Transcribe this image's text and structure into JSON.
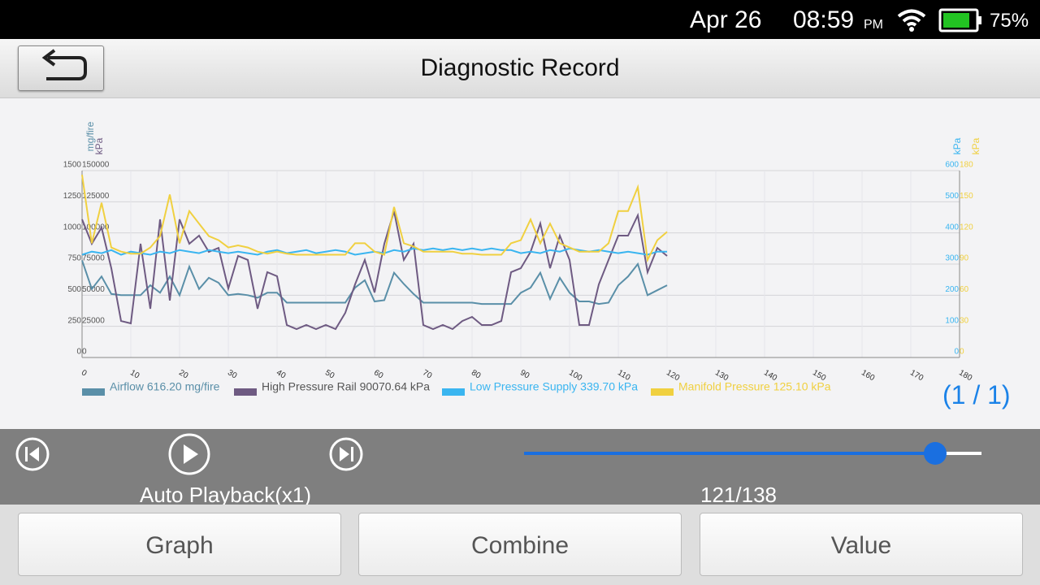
{
  "status_bar": {
    "date": "Apr 26",
    "time": "08:59",
    "ampm": "PM",
    "battery": "75%"
  },
  "header": {
    "title": "Diagnostic Record"
  },
  "chart_data": {
    "type": "line",
    "x": [
      0,
      2,
      4,
      6,
      8,
      10,
      12,
      14,
      16,
      18,
      20,
      22,
      24,
      26,
      28,
      30,
      32,
      34,
      36,
      38,
      40,
      42,
      44,
      46,
      48,
      50,
      52,
      54,
      56,
      58,
      60,
      62,
      64,
      66,
      68,
      70,
      72,
      74,
      76,
      78,
      80,
      82,
      84,
      86,
      88,
      90,
      92,
      94,
      96,
      98,
      100,
      102,
      104,
      106,
      108,
      110,
      112,
      114,
      116,
      118,
      120
    ],
    "xlim": [
      0,
      180
    ],
    "xticks": [
      0,
      10,
      20,
      30,
      40,
      50,
      60,
      70,
      80,
      90,
      100,
      110,
      120,
      130,
      140,
      150,
      160,
      170,
      180
    ],
    "grid": true,
    "yaxes": [
      {
        "label": "mg/fire",
        "side": "left",
        "color": "#5a8fa8",
        "lim": [
          0,
          1500
        ],
        "ticks": [
          0,
          250,
          500,
          750,
          1000,
          1250,
          1500
        ]
      },
      {
        "label": "kPa",
        "side": "left",
        "color": "#6e5a82",
        "lim": [
          0,
          150000
        ],
        "ticks": [
          0,
          25000,
          50000,
          75000,
          100000,
          125000,
          150000
        ]
      },
      {
        "label": "kPa",
        "side": "right",
        "color": "#3ab5f0",
        "lim": [
          0,
          600
        ],
        "ticks": [
          0,
          100,
          200,
          300,
          400,
          500,
          600
        ]
      },
      {
        "label": "kPa",
        "side": "right",
        "color": "#f0d040",
        "lim": [
          0,
          180
        ],
        "ticks": [
          0,
          30,
          60,
          90,
          120,
          150,
          180
        ]
      }
    ],
    "series": [
      {
        "name": "Airflow 616.20 mg/fire",
        "color": "#5a8fa8",
        "axis": 0,
        "values": [
          780,
          550,
          650,
          510,
          500,
          500,
          500,
          580,
          520,
          650,
          500,
          730,
          550,
          640,
          600,
          500,
          510,
          500,
          480,
          520,
          520,
          440,
          440,
          440,
          440,
          440,
          440,
          440,
          560,
          620,
          450,
          460,
          680,
          590,
          510,
          440,
          440,
          440,
          440,
          440,
          440,
          430,
          430,
          430,
          430,
          520,
          560,
          680,
          470,
          640,
          520,
          450,
          450,
          430,
          440,
          580,
          650,
          750,
          500,
          540,
          580
        ]
      },
      {
        "name": "High Pressure Rail 90070.64 kPa",
        "color": "#6e5a82",
        "axis": 1,
        "values": [
          110900,
          91300,
          104300,
          71700,
          29300,
          27400,
          91300,
          39100,
          110900,
          45700,
          110900,
          91300,
          97800,
          84800,
          88000,
          55400,
          81500,
          78300,
          39100,
          68500,
          65200,
          26100,
          22800,
          26100,
          22800,
          26100,
          22800,
          35900,
          58700,
          78300,
          52200,
          91300,
          117400,
          78300,
          91300,
          26100,
          22800,
          26100,
          22800,
          29300,
          32600,
          26100,
          26100,
          29300,
          68500,
          71700,
          84800,
          107600,
          71700,
          97800,
          78300,
          26100,
          26100,
          58700,
          78300,
          97800,
          97800,
          114100,
          68500,
          88000,
          81500
        ]
      },
      {
        "name": "Low Pressure Supply 339.70 kPa",
        "color": "#3ab5f0",
        "axis": 2,
        "values": [
          330,
          340,
          335,
          345,
          330,
          340,
          335,
          330,
          340,
          335,
          345,
          340,
          335,
          345,
          340,
          335,
          340,
          335,
          330,
          340,
          345,
          335,
          340,
          345,
          335,
          340,
          345,
          340,
          330,
          335,
          340,
          335,
          345,
          340,
          350,
          345,
          350,
          345,
          350,
          345,
          350,
          345,
          350,
          345,
          345,
          335,
          340,
          335,
          345,
          340,
          350,
          345,
          340,
          345,
          340,
          335,
          340,
          335,
          330,
          340,
          340
        ]
      },
      {
        "name": "Manifold Pressure 125.10 kPa",
        "color": "#f0d040",
        "axis": 3,
        "values": [
          176,
          110,
          149,
          106,
          102,
          100,
          100,
          106,
          117,
          157,
          110,
          141,
          129,
          117,
          113,
          106,
          108,
          106,
          102,
          100,
          102,
          100,
          99,
          99,
          99,
          99,
          99,
          99,
          110,
          110,
          102,
          99,
          145,
          110,
          107,
          102,
          102,
          102,
          102,
          100,
          100,
          99,
          99,
          99,
          110,
          113,
          133,
          110,
          129,
          110,
          106,
          102,
          102,
          102,
          110,
          141,
          141,
          164,
          94,
          113,
          121
        ]
      }
    ]
  },
  "page_indicator": "(1 / 1)",
  "playback": {
    "mode": "Auto Playback(x1)",
    "counter": "121/138"
  },
  "buttons": [
    "Graph",
    "Combine",
    "Value"
  ]
}
